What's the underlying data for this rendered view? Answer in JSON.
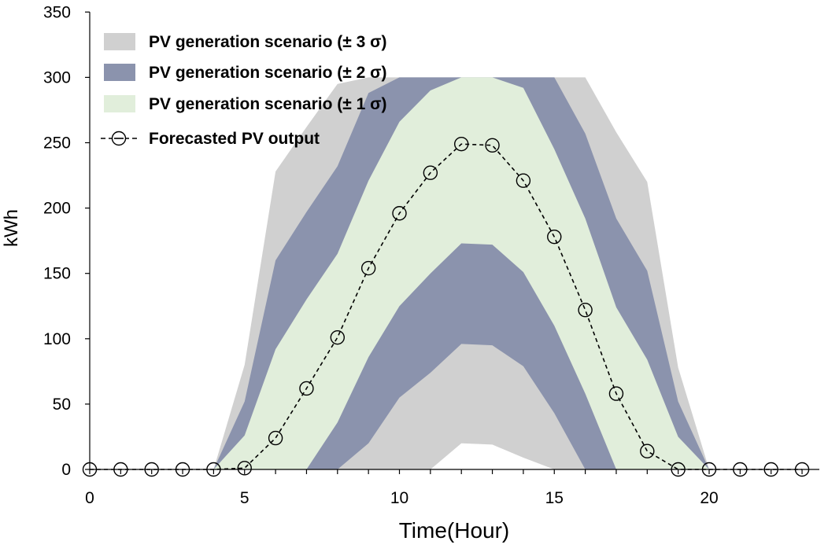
{
  "chart_data": {
    "type": "area",
    "xlabel": "Time(Hour)",
    "ylabel": "kWh",
    "xlim": [
      0,
      23.5
    ],
    "ylim": [
      0,
      350
    ],
    "x_ticks": [
      0,
      5,
      10,
      15,
      20
    ],
    "y_ticks": [
      0,
      50,
      100,
      150,
      200,
      250,
      300,
      350
    ],
    "grid": false,
    "legend_position": "top-left",
    "x": [
      0,
      1,
      2,
      3,
      4,
      5,
      6,
      7,
      8,
      9,
      10,
      11,
      12,
      13,
      14,
      15,
      16,
      17,
      18,
      19,
      20,
      21,
      22,
      23
    ],
    "series": [
      {
        "name": "PV generation scenario (± 3 σ)",
        "kind": "band",
        "color": "#d0d0d0",
        "upper": [
          0,
          0,
          0,
          0,
          0,
          80,
          228,
          262,
          295,
          300,
          300,
          300,
          300,
          300,
          300,
          300,
          300,
          258,
          220,
          78,
          0,
          0,
          0,
          0
        ],
        "lower": [
          0,
          0,
          0,
          0,
          0,
          0,
          0,
          0,
          0,
          0,
          0,
          0,
          20,
          19,
          9,
          0,
          0,
          0,
          0,
          0,
          0,
          0,
          0,
          0
        ]
      },
      {
        "name": "PV generation scenario (± 2 σ)",
        "kind": "band",
        "color": "#8b93ad",
        "upper": [
          0,
          0,
          0,
          0,
          0,
          52,
          160,
          197,
          232,
          288,
          300,
          300,
          300,
          300,
          300,
          300,
          257,
          192,
          152,
          52,
          0,
          0,
          0,
          0
        ],
        "lower": [
          0,
          0,
          0,
          0,
          0,
          0,
          0,
          0,
          0,
          20,
          55,
          74,
          96,
          95,
          79,
          43,
          0,
          0,
          0,
          0,
          0,
          0,
          0,
          0
        ]
      },
      {
        "name": "PV generation scenario (± 1 σ)",
        "kind": "band",
        "color": "#e1eedb",
        "upper": [
          0,
          0,
          0,
          0,
          0,
          26,
          92,
          130,
          165,
          221,
          266,
          290,
          300,
          300,
          292,
          245,
          192,
          124,
          84,
          25,
          0,
          0,
          0,
          0
        ],
        "lower": [
          0,
          0,
          0,
          0,
          0,
          0,
          0,
          0,
          36,
          86,
          125,
          150,
          173,
          172,
          151,
          110,
          58,
          0,
          0,
          0,
          0,
          0,
          0,
          0
        ]
      },
      {
        "name": "Forecasted PV output",
        "kind": "line",
        "color": "#000000",
        "values": [
          0,
          0,
          0,
          0,
          0,
          1,
          24,
          62,
          101,
          154,
          196,
          227,
          249,
          248,
          221,
          178,
          122,
          58,
          14,
          0,
          0,
          0,
          0,
          0
        ]
      }
    ]
  }
}
